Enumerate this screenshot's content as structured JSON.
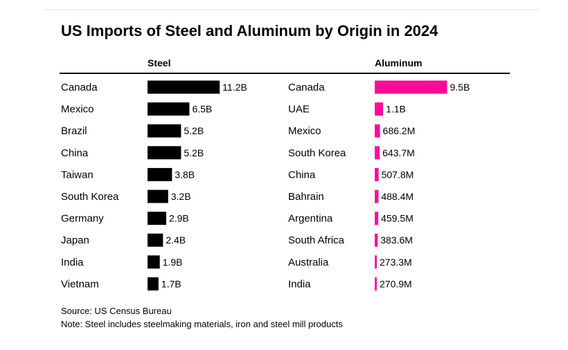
{
  "chart_data": {
    "type": "bar",
    "title": "US Imports of Steel and Aluminum by Origin in 2024",
    "unit": "US dollars",
    "panels": [
      {
        "name": "Steel",
        "color": "#000000",
        "categories": [
          "Canada",
          "Mexico",
          "Brazil",
          "China",
          "Taiwan",
          "South Korea",
          "Germany",
          "Japan",
          "India",
          "Vietnam"
        ],
        "values": [
          11.2,
          6.5,
          5.2,
          5.2,
          3.8,
          3.2,
          2.9,
          2.4,
          1.9,
          1.7
        ],
        "value_unit": "billion",
        "labels": [
          "11.2B",
          "6.5B",
          "5.2B",
          "5.2B",
          "3.8B",
          "3.2B",
          "2.9B",
          "2.4B",
          "1.9B",
          "1.7B"
        ]
      },
      {
        "name": "Aluminum",
        "color": "#ff0a9a",
        "categories": [
          "Canada",
          "UAE",
          "Mexico",
          "South Korea",
          "China",
          "Bahrain",
          "Argentina",
          "South Africa",
          "Australia",
          "India"
        ],
        "values": [
          9.5,
          1.1,
          0.6862,
          0.6437,
          0.5078,
          0.4884,
          0.4595,
          0.3836,
          0.2733,
          0.2709
        ],
        "value_unit": "billion",
        "labels": [
          "9.5B",
          "1.1B",
          "686.2M",
          "643.7M",
          "507.8M",
          "488.4M",
          "459.5M",
          "383.6M",
          "273.3M",
          "270.9M"
        ]
      }
    ],
    "source": "Source: US Census Bureau",
    "note": "Note: Steel includes steelmaking materials, iron and steel mill products"
  }
}
